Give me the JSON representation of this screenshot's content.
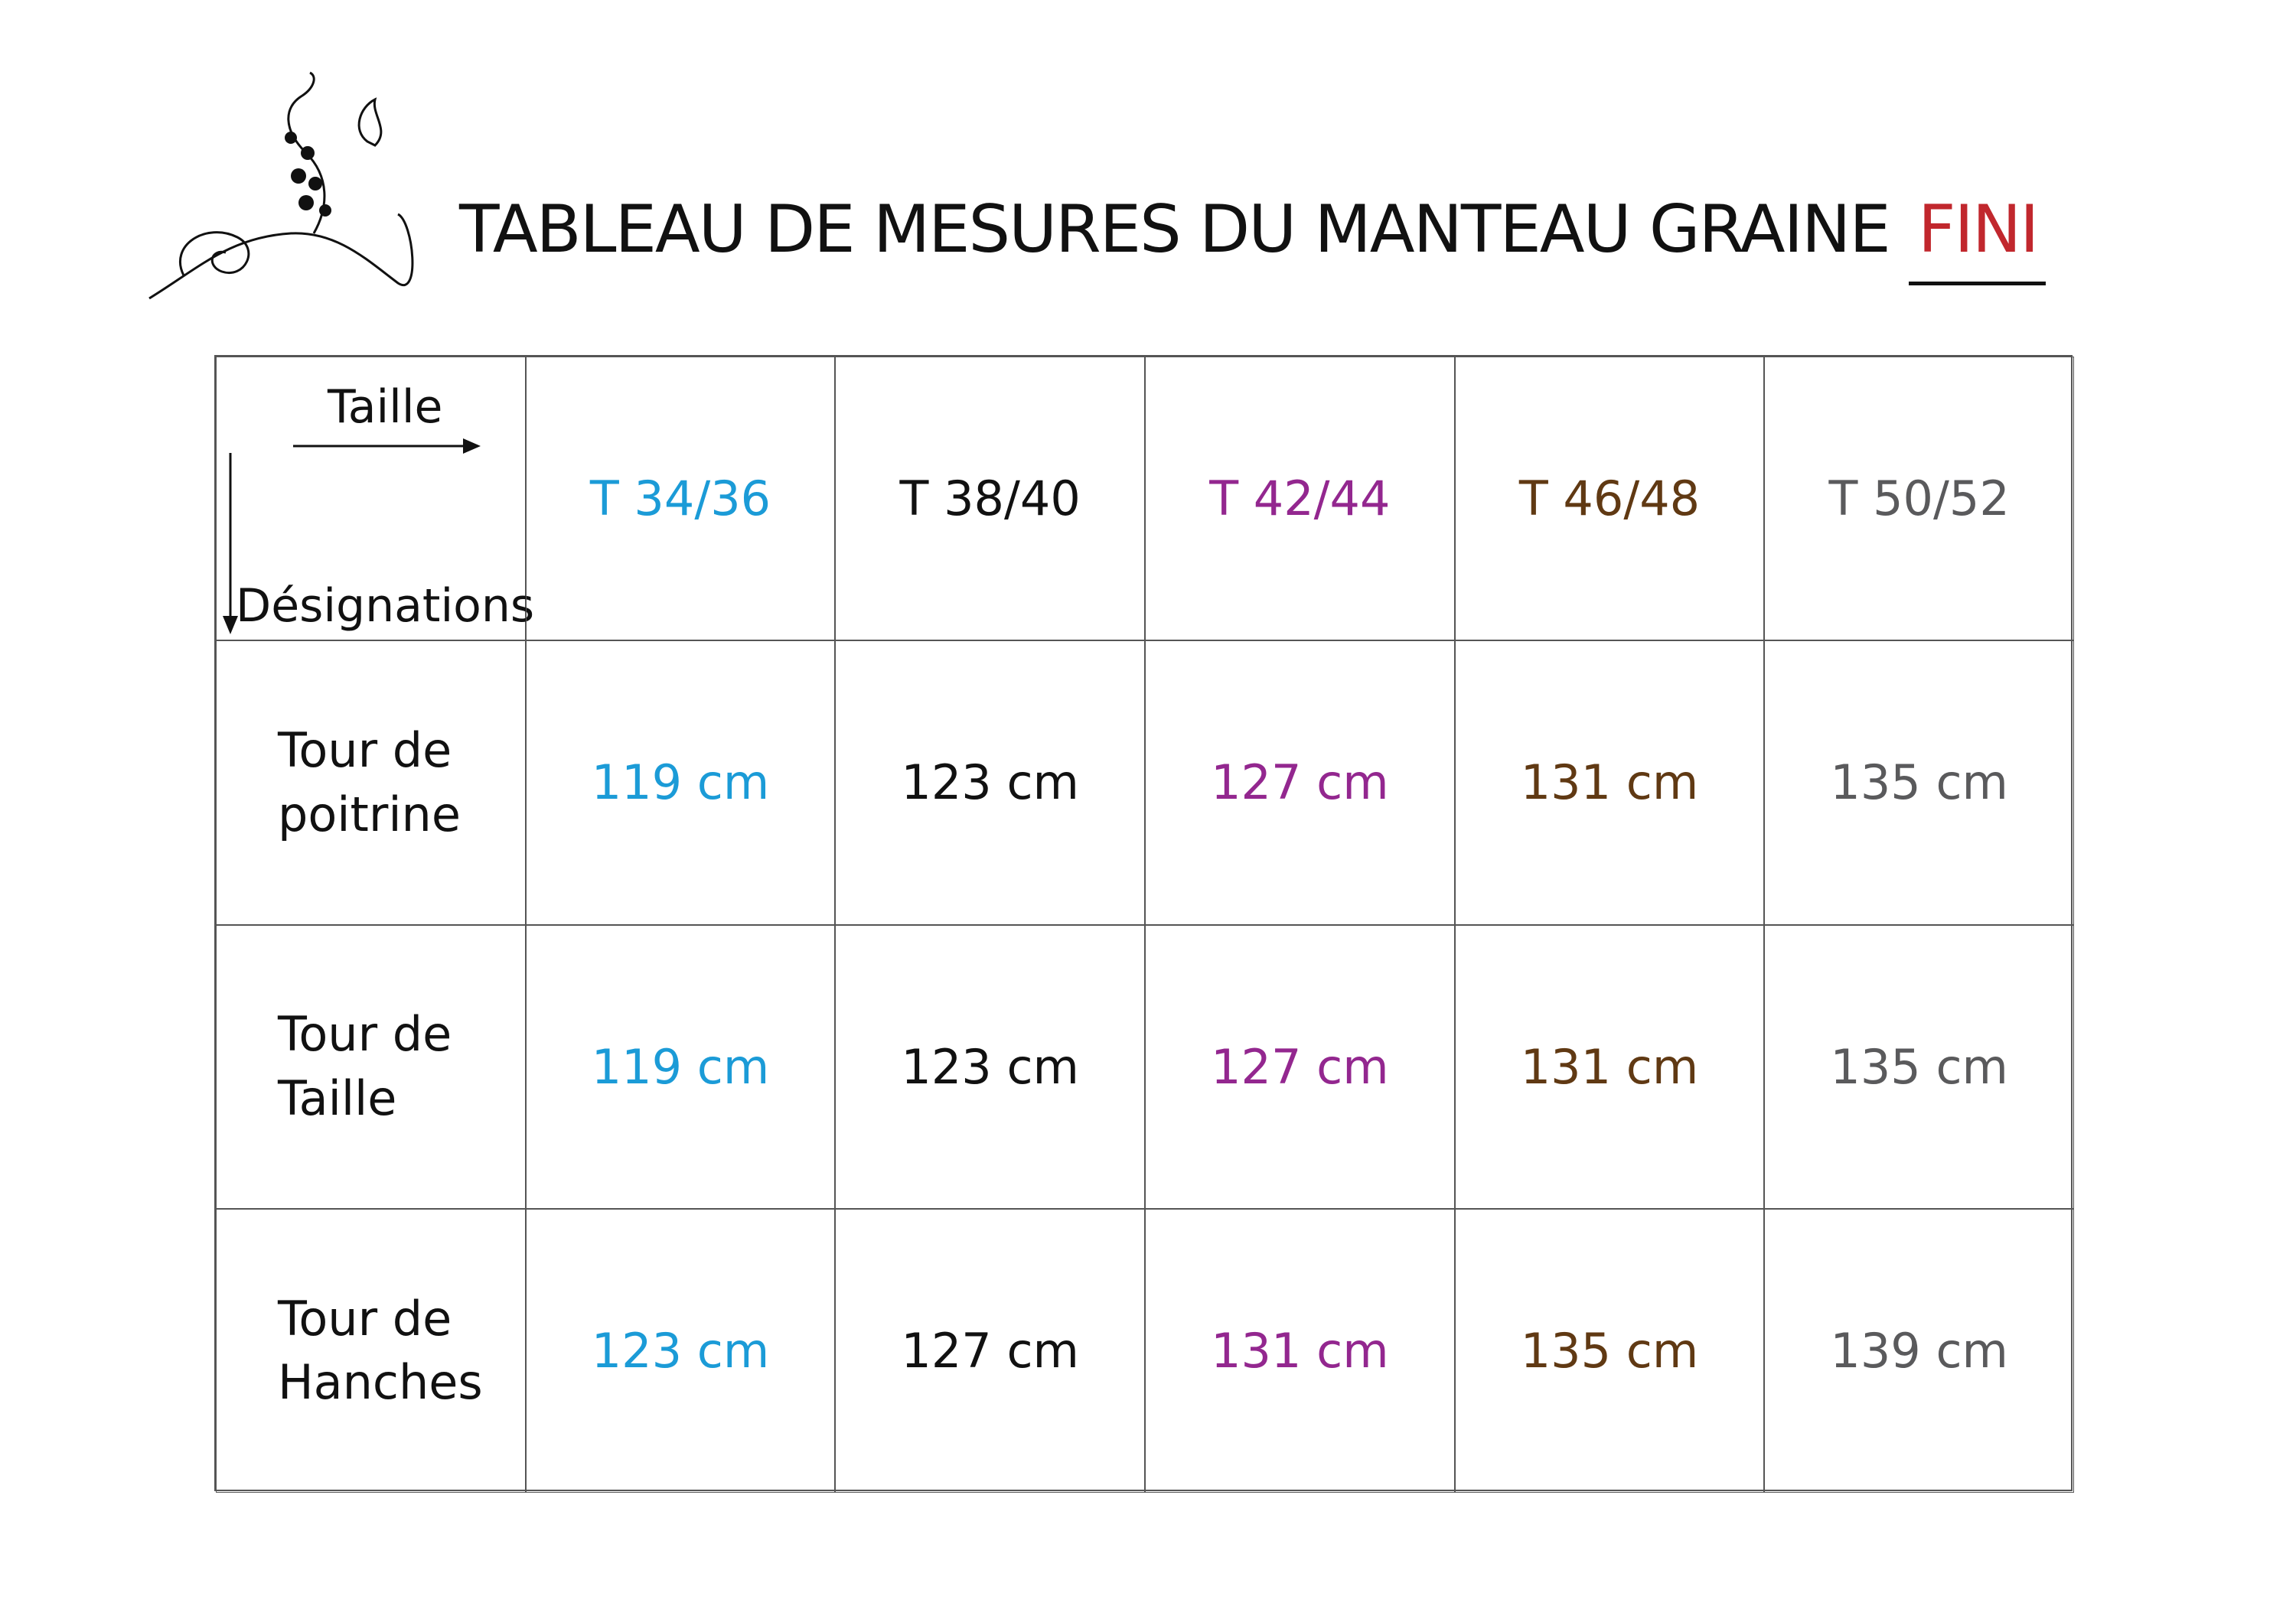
{
  "header": {
    "title": "TABLEAU DE MESURES DU MANTEAU GRAINE",
    "highlight": "FINI"
  },
  "table": {
    "corner": {
      "across": "Taille",
      "down": "Désignations"
    },
    "columns": [
      {
        "label": "T 34/36",
        "color": "#1b9bd7"
      },
      {
        "label": "T 38/40",
        "color": "#111111"
      },
      {
        "label": "T 42/44",
        "color": "#93278f"
      },
      {
        "label": "T 46/48",
        "color": "#603913"
      },
      {
        "label": "T 50/52",
        "color": "#5a5a5c"
      }
    ],
    "rows": [
      {
        "label": "Tour de poitrine",
        "cells": [
          "119 cm",
          "123 cm",
          "127 cm",
          "131 cm",
          "135 cm"
        ]
      },
      {
        "label": "Tour de Taille",
        "cells": [
          "119 cm",
          "123 cm",
          "127 cm",
          "131 cm",
          "135 cm"
        ]
      },
      {
        "label": "Tour de Hanches",
        "cells": [
          "123 cm",
          "127 cm",
          "131 cm",
          "135 cm",
          "139 cm"
        ]
      }
    ]
  }
}
